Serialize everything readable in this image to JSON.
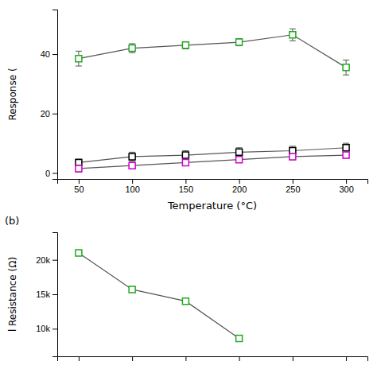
{
  "chart_data": [
    {
      "type": "line",
      "x_label": "Temperature (°C)",
      "y_label": "Response (",
      "x": [
        50,
        100,
        150,
        200,
        250,
        300
      ],
      "xlim": [
        30,
        320
      ],
      "xticks": [
        50,
        100,
        150,
        200,
        250,
        300
      ],
      "ylim": [
        -2,
        55
      ],
      "yticks": [
        0,
        20,
        40
      ],
      "color": "#555555",
      "marker": "square",
      "series": [
        {
          "color": "#22aa22",
          "values": [
            38.5,
            42.0,
            43.0,
            44.0,
            46.5,
            35.5
          ],
          "errors": [
            2.5,
            1.5,
            1.2,
            1.2,
            2.0,
            2.5
          ]
        },
        {
          "color": "#000000",
          "values": [
            3.5,
            5.5,
            6.0,
            7.0,
            7.5,
            8.5
          ],
          "errors": [
            1.2,
            1.5,
            1.5,
            1.5,
            1.5,
            1.5
          ]
        },
        {
          "color": "#cc00cc",
          "values": [
            1.5,
            2.5,
            3.5,
            4.5,
            5.5,
            6.0
          ],
          "errors": [
            1.2,
            1.0,
            1.0,
            1.0,
            1.0,
            1.0
          ]
        }
      ]
    },
    {
      "type": "line",
      "annotation": "(b)",
      "y_label": "l Resistance (Ω)",
      "x": [
        50,
        100,
        150,
        200
      ],
      "xlim": [
        30,
        320
      ],
      "xticks": [
        50,
        100,
        150,
        200,
        250,
        300
      ],
      "ylim": [
        6000,
        24000
      ],
      "yticks": [
        {
          "value": 10000,
          "label": "10k"
        },
        {
          "value": 15000,
          "label": "15k"
        },
        {
          "value": 20000,
          "label": "20k"
        }
      ],
      "tick_labels": "y",
      "color": "#555555",
      "marker": "square",
      "series": [
        {
          "color": "#22aa22",
          "values": [
            21000,
            15700,
            14000,
            8600
          ]
        }
      ]
    }
  ]
}
